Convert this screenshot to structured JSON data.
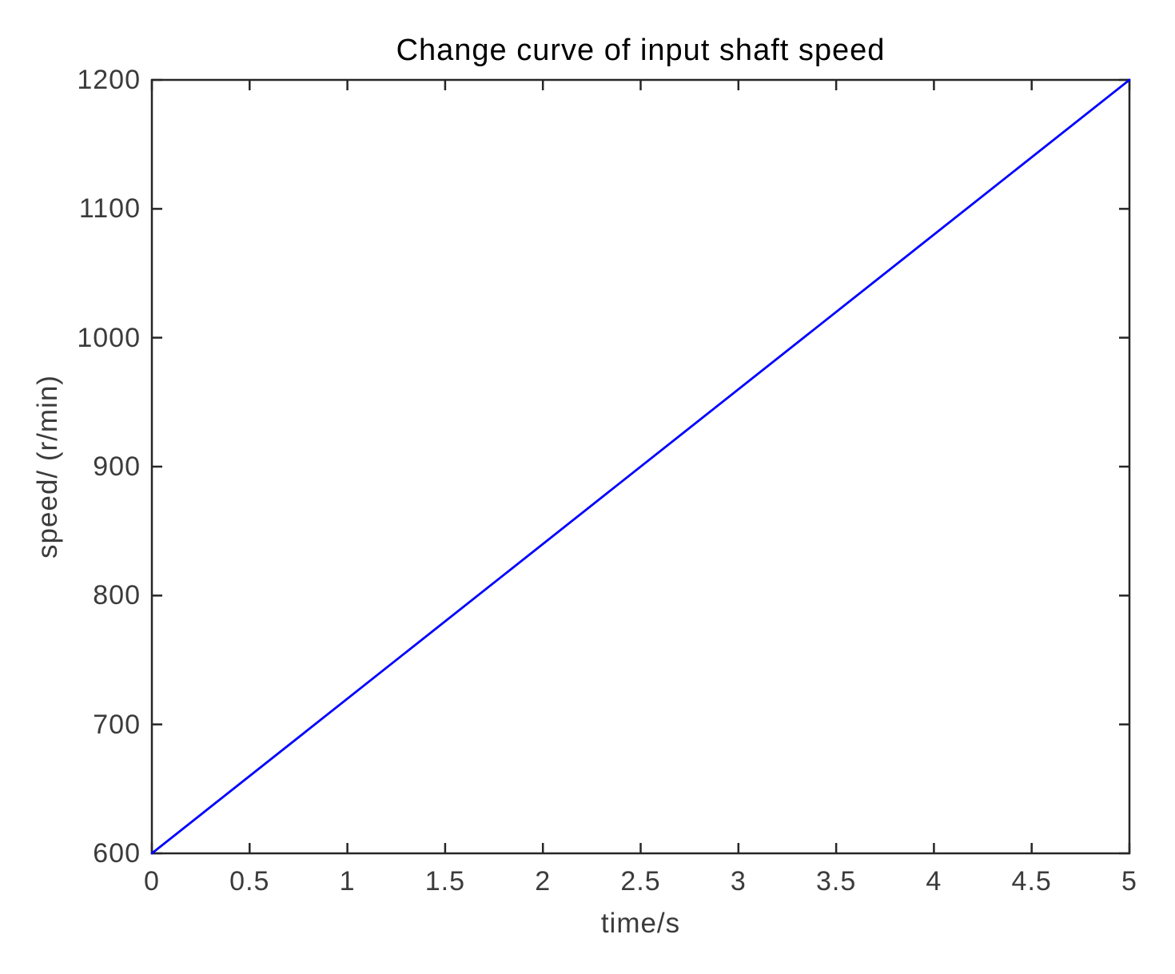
{
  "chart_data": {
    "type": "line",
    "title": "Change curve of input shaft speed",
    "xlabel": "time/s",
    "ylabel": "speed/（r/min）",
    "xlim": [
      0,
      5
    ],
    "ylim": [
      600,
      1200
    ],
    "xticks": {
      "values": [
        0,
        0.5,
        1,
        1.5,
        2,
        2.5,
        3,
        3.5,
        4,
        4.5,
        5
      ],
      "labels": [
        "0",
        "0.5",
        "1",
        "1.5",
        "2",
        "2.5",
        "3",
        "3.5",
        "4",
        "4.5",
        "5"
      ]
    },
    "yticks": {
      "values": [
        600,
        700,
        800,
        900,
        1000,
        1100,
        1200
      ],
      "labels": [
        "600",
        "700",
        "800",
        "900",
        "1000",
        "1100",
        "1200"
      ]
    },
    "grid": false,
    "legend": "none",
    "box": true,
    "tick_direction": "in",
    "series": [
      {
        "name": "input shaft speed",
        "color": "#0000FF",
        "x": [
          0,
          5
        ],
        "y": [
          600,
          1200
        ]
      }
    ],
    "colors": {
      "line": "#0000FF",
      "axis": "#262626",
      "tick_label": "#3b3b3b",
      "title": "#000000",
      "background": "#ffffff"
    }
  }
}
